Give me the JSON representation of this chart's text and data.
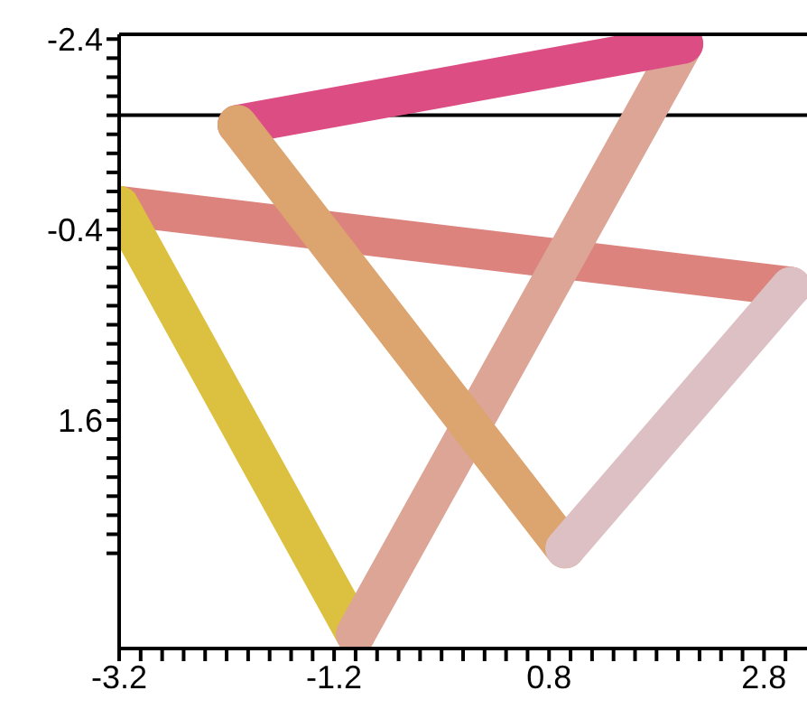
{
  "chart_data": {
    "type": "line",
    "marker": "none",
    "xlim": [
      -3.2,
      3.2
    ],
    "ylim": [
      4.0,
      -2.45
    ],
    "xticks": [
      -3.2,
      {
        "value": -3.0,
        "label": null
      },
      {
        "value": -2.8,
        "label": null
      },
      {
        "value": -2.6,
        "label": null
      },
      {
        "value": -2.4,
        "label": null
      },
      {
        "value": -2.2,
        "label": null
      },
      {
        "value": -2.0,
        "label": null
      },
      {
        "value": -1.8,
        "label": null
      },
      {
        "value": -1.6,
        "label": null
      },
      {
        "value": -1.4,
        "label": null
      },
      -1.2,
      {
        "value": -1.0,
        "label": null
      },
      {
        "value": -0.8,
        "label": null
      },
      {
        "value": -0.6,
        "label": null
      },
      {
        "value": -0.4,
        "label": null
      },
      {
        "value": -0.2,
        "label": null
      },
      {
        "value": 0,
        "label": null
      },
      {
        "value": 0.2,
        "label": null
      },
      {
        "value": 0.4,
        "label": null
      },
      {
        "value": 0.6,
        "label": null
      },
      0.8,
      {
        "value": 1.0,
        "label": null
      },
      {
        "value": 1.2,
        "label": null
      },
      {
        "value": 1.4,
        "label": null
      },
      {
        "value": 1.6,
        "label": null
      },
      {
        "value": 1.8,
        "label": null
      },
      {
        "value": 2.0,
        "label": null
      },
      {
        "value": 2.2,
        "label": null
      },
      {
        "value": 2.4,
        "label": null
      },
      {
        "value": 2.6,
        "label": null
      },
      2.8,
      {
        "value": 3.0,
        "label": null
      }
    ],
    "yticks": [
      -2.4,
      {
        "value": -2.2,
        "label": null
      },
      {
        "value": -2.0,
        "label": null
      },
      {
        "value": -1.8,
        "label": null
      },
      {
        "value": -1.6,
        "label": null
      },
      {
        "value": -1.4,
        "label": null
      },
      {
        "value": -1.2,
        "label": null
      },
      {
        "value": -1.0,
        "label": null
      },
      {
        "value": -0.8,
        "label": null
      },
      {
        "value": -0.6,
        "label": null
      },
      -0.4,
      {
        "value": -0.2,
        "label": null
      },
      {
        "value": 0,
        "label": null
      },
      {
        "value": 0.2,
        "label": null
      },
      {
        "value": 0.4,
        "label": null
      },
      {
        "value": 0.6,
        "label": null
      },
      {
        "value": 0.8,
        "label": null
      },
      {
        "value": 1.0,
        "label": null
      },
      {
        "value": 1.2,
        "label": null
      },
      {
        "value": 1.4,
        "label": null
      },
      1.6,
      {
        "value": 1.8,
        "label": null
      },
      {
        "value": 2.0,
        "label": null
      },
      {
        "value": 2.2,
        "label": null
      },
      {
        "value": 2.4,
        "label": null
      },
      {
        "value": 2.6,
        "label": null
      },
      {
        "value": 2.8,
        "label": null
      },
      {
        "value": 3.0,
        "label": null
      }
    ],
    "ref_lines": [
      {
        "axis": "y",
        "value": -1.6,
        "color": "#000000"
      }
    ],
    "series": [
      {
        "color": "#dc837e",
        "x": [
          3.05,
          -3.2
        ],
        "values": [
          0.2,
          -0.65
        ]
      },
      {
        "color": "#dcc140",
        "x": [
          -3.2,
          -1.0
        ],
        "values": [
          -0.65,
          3.85
        ]
      },
      {
        "color": "#dca595",
        "x": [
          -1.0,
          2.05
        ],
        "values": [
          3.85,
          -2.35
        ]
      },
      {
        "color": "#dc4d84",
        "x": [
          2.05,
          -2.1
        ],
        "values": [
          -2.35,
          -1.5
        ]
      },
      {
        "color": "#dca46e",
        "x": [
          -2.1,
          0.95
        ],
        "values": [
          -1.5,
          2.95
        ]
      },
      {
        "color": "#dcc0c4",
        "x": [
          0.95,
          3.05
        ],
        "values": [
          2.95,
          0.2
        ]
      }
    ]
  }
}
